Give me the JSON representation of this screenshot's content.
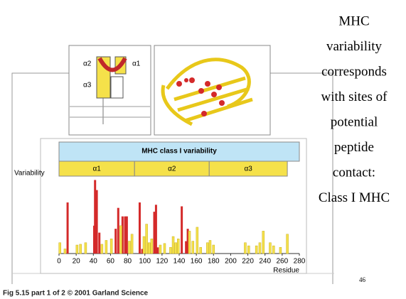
{
  "slide": {
    "text_lines": [
      "MHC",
      "variability",
      "corresponds",
      "with sites of",
      "potential",
      "peptide",
      "contact:",
      "Class I MHC"
    ],
    "page_number": "46",
    "footer": "Fig 5.15 part 1 of 2  © 2001 Garland Science",
    "diagram_labels": [
      "α2",
      "α1",
      "α3"
    ]
  },
  "chart_data": {
    "type": "bar",
    "title": "MHC class I variability",
    "y_label": "Variability",
    "x_label": "Residue",
    "domains": [
      {
        "label": "α1",
        "start": 0,
        "end": 88
      },
      {
        "label": "α2",
        "start": 88,
        "end": 175
      },
      {
        "label": "α3",
        "start": 175,
        "end": 266
      }
    ],
    "xlim": [
      0,
      280
    ],
    "xticks": [
      0,
      20,
      40,
      60,
      80,
      100,
      120,
      140,
      160,
      180,
      200,
      220,
      240,
      260,
      280
    ],
    "ylim": [
      0,
      100
    ],
    "series": [
      {
        "color": "#d42a2a",
        "x": [
          10,
          41,
          42,
          44,
          47,
          66,
          69,
          74,
          77,
          79,
          94,
          97,
          111,
          113,
          115,
          143,
          148,
          150
        ],
        "values": [
          66,
          36,
          95,
          82,
          27,
          32,
          59,
          48,
          48,
          48,
          66,
          6,
          54,
          63,
          8,
          61,
          16,
          32
        ]
      },
      {
        "color": "#f5e14a",
        "x": [
          1,
          7,
          21,
          25,
          31,
          50,
          55,
          61,
          72,
          82,
          85,
          99,
          102,
          105,
          108,
          118,
          123,
          130,
          133,
          136,
          139,
          152,
          156,
          161,
          165,
          173,
          176,
          180,
          217,
          221,
          230,
          234,
          238,
          246,
          250,
          258,
          266
        ],
        "values": [
          14,
          6,
          11,
          12,
          14,
          12,
          17,
          19,
          36,
          16,
          25,
          22,
          38,
          14,
          19,
          11,
          13,
          8,
          22,
          14,
          19,
          29,
          16,
          34,
          8,
          14,
          17,
          11,
          14,
          10,
          10,
          14,
          29,
          14,
          10,
          8,
          25
        ]
      }
    ]
  }
}
